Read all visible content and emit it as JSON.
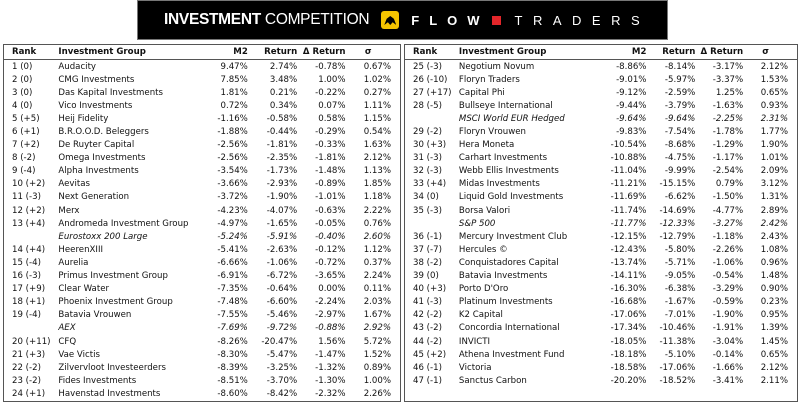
{
  "header": {
    "title_bold": "INVESTMENT",
    "title_rest": "COMPETITION",
    "brand_left": "FLOW",
    "brand_right": "TRADERS",
    "brand_colors": {
      "logo": "#f5c400",
      "square": "#e3262a",
      "background": "#000000"
    }
  },
  "columns": [
    "Rank",
    "Investment Group",
    "M2",
    "Return",
    "Δ Return",
    "σ"
  ],
  "left_table": [
    {
      "rank": "1 (0)",
      "group": "Audacity",
      "m2": "9.47%",
      "ret": "2.74%",
      "dret": "-0.78%",
      "sigma": "0.67%"
    },
    {
      "rank": "2 (0)",
      "group": "CMG Investments",
      "m2": "7.85%",
      "ret": "3.48%",
      "dret": "1.00%",
      "sigma": "1.02%"
    },
    {
      "rank": "3 (0)",
      "group": "Das Kapital Investments",
      "m2": "1.81%",
      "ret": "0.21%",
      "dret": "-0.22%",
      "sigma": "0.27%"
    },
    {
      "rank": "4 (0)",
      "group": "Vico Investments",
      "m2": "0.72%",
      "ret": "0.34%",
      "dret": "0.07%",
      "sigma": "1.11%"
    },
    {
      "rank": "5 (+5)",
      "group": "Heij Fidelity",
      "m2": "-1.16%",
      "ret": "-0.58%",
      "dret": "0.58%",
      "sigma": "1.15%"
    },
    {
      "rank": "6 (+1)",
      "group": "B.R.O.O.D. Beleggers",
      "m2": "-1.88%",
      "ret": "-0.44%",
      "dret": "-0.29%",
      "sigma": "0.54%"
    },
    {
      "rank": "7 (+2)",
      "group": "De Ruyter Capital",
      "m2": "-2.56%",
      "ret": "-1.81%",
      "dret": "-0.33%",
      "sigma": "1.63%"
    },
    {
      "rank": "8 (-2)",
      "group": "Omega Investments",
      "m2": "-2.56%",
      "ret": "-2.35%",
      "dret": "-1.81%",
      "sigma": "2.12%"
    },
    {
      "rank": "9 (-4)",
      "group": "Alpha Investments",
      "m2": "-3.54%",
      "ret": "-1.73%",
      "dret": "-1.48%",
      "sigma": "1.13%"
    },
    {
      "rank": "10 (+2)",
      "group": "Aevitas",
      "m2": "-3.66%",
      "ret": "-2.93%",
      "dret": "-0.89%",
      "sigma": "1.85%"
    },
    {
      "rank": "11 (-3)",
      "group": "Next Generation",
      "m2": "-3.72%",
      "ret": "-1.90%",
      "dret": "-1.01%",
      "sigma": "1.18%"
    },
    {
      "rank": "12 (+2)",
      "group": "Merx",
      "m2": "-4.23%",
      "ret": "-4.07%",
      "dret": "-0.63%",
      "sigma": "2.22%"
    },
    {
      "rank": "13 (+4)",
      "group": "Andromeda Investment Group",
      "m2": "-4.97%",
      "ret": "-1.65%",
      "dret": "-0.05%",
      "sigma": "0.76%"
    },
    {
      "rank": "",
      "group": "Eurostoxx 200 Large",
      "m2": "-5.24%",
      "ret": "-5.91%",
      "dret": "-0.40%",
      "sigma": "2.60%",
      "benchmark": true
    },
    {
      "rank": "14 (+4)",
      "group": "HeerenXIII",
      "m2": "-5.41%",
      "ret": "-2.63%",
      "dret": "-0.12%",
      "sigma": "1.12%"
    },
    {
      "rank": "15 (-4)",
      "group": "Aurelia",
      "m2": "-6.66%",
      "ret": "-1.06%",
      "dret": "-0.72%",
      "sigma": "0.37%"
    },
    {
      "rank": "16 (-3)",
      "group": "Primus Investment Group",
      "m2": "-6.91%",
      "ret": "-6.72%",
      "dret": "-3.65%",
      "sigma": "2.24%"
    },
    {
      "rank": "17 (+9)",
      "group": "Clear Water",
      "m2": "-7.35%",
      "ret": "-0.64%",
      "dret": "0.00%",
      "sigma": "0.11%"
    },
    {
      "rank": "18 (+1)",
      "group": "Phoenix Investment Group",
      "m2": "-7.48%",
      "ret": "-6.60%",
      "dret": "-2.24%",
      "sigma": "2.03%"
    },
    {
      "rank": "19 (-4)",
      "group": "Batavia Vrouwen",
      "m2": "-7.55%",
      "ret": "-5.46%",
      "dret": "-2.97%",
      "sigma": "1.67%"
    },
    {
      "rank": "",
      "group": "AEX",
      "m2": "-7.69%",
      "ret": "-9.72%",
      "dret": "-0.88%",
      "sigma": "2.92%",
      "benchmark": true
    },
    {
      "rank": "20 (+11)",
      "group": "CFQ",
      "m2": "-8.26%",
      "ret": "-20.47%",
      "dret": "1.56%",
      "sigma": "5.72%"
    },
    {
      "rank": "21 (+3)",
      "group": "Vae Victis",
      "m2": "-8.30%",
      "ret": "-5.47%",
      "dret": "-1.47%",
      "sigma": "1.52%"
    },
    {
      "rank": "22 (-2)",
      "group": "Zilvervloot Investeerders",
      "m2": "-8.39%",
      "ret": "-3.25%",
      "dret": "-1.32%",
      "sigma": "0.89%"
    },
    {
      "rank": "23 (-2)",
      "group": "Fides Investments",
      "m2": "-8.51%",
      "ret": "-3.70%",
      "dret": "-1.30%",
      "sigma": "1.00%"
    },
    {
      "rank": "24 (+1)",
      "group": "Havenstad Investments",
      "m2": "-8.60%",
      "ret": "-8.42%",
      "dret": "-2.32%",
      "sigma": "2.26%"
    }
  ],
  "right_table": [
    {
      "rank": "25 (-3)",
      "group": "Negotium Novum",
      "m2": "-8.86%",
      "ret": "-8.14%",
      "dret": "-3.17%",
      "sigma": "2.12%"
    },
    {
      "rank": "26 (-10)",
      "group": "Floryn Traders",
      "m2": "-9.01%",
      "ret": "-5.97%",
      "dret": "-3.37%",
      "sigma": "1.53%"
    },
    {
      "rank": "27 (+17)",
      "group": "Capital Phi",
      "m2": "-9.12%",
      "ret": "-2.59%",
      "dret": "1.25%",
      "sigma": "0.65%"
    },
    {
      "rank": "28 (-5)",
      "group": "Bullseye International",
      "m2": "-9.44%",
      "ret": "-3.79%",
      "dret": "-1.63%",
      "sigma": "0.93%"
    },
    {
      "rank": "",
      "group": "MSCI World EUR Hedged",
      "m2": "-9.64%",
      "ret": "-9.64%",
      "dret": "-2.25%",
      "sigma": "2.31%",
      "benchmark": true
    },
    {
      "rank": "29 (-2)",
      "group": "Floryn Vrouwen",
      "m2": "-9.83%",
      "ret": "-7.54%",
      "dret": "-1.78%",
      "sigma": "1.77%"
    },
    {
      "rank": "30 (+3)",
      "group": "Hera Moneta",
      "m2": "-10.54%",
      "ret": "-8.68%",
      "dret": "-1.29%",
      "sigma": "1.90%"
    },
    {
      "rank": "31 (-3)",
      "group": "Carhart Investments",
      "m2": "-10.88%",
      "ret": "-4.75%",
      "dret": "-1.17%",
      "sigma": "1.01%"
    },
    {
      "rank": "32 (-3)",
      "group": "Webb Ellis Investments",
      "m2": "-11.04%",
      "ret": "-9.99%",
      "dret": "-2.54%",
      "sigma": "2.09%"
    },
    {
      "rank": "33 (+4)",
      "group": "Midas Investments",
      "m2": "-11.21%",
      "ret": "-15.15%",
      "dret": "0.79%",
      "sigma": "3.12%"
    },
    {
      "rank": "34 (0)",
      "group": "Liquid Gold Investments",
      "m2": "-11.69%",
      "ret": "-6.62%",
      "dret": "-1.50%",
      "sigma": "1.31%"
    },
    {
      "rank": "35 (-3)",
      "group": "Borsa Valori",
      "m2": "-11.74%",
      "ret": "-14.69%",
      "dret": "-4.77%",
      "sigma": "2.89%"
    },
    {
      "rank": "",
      "group": "S&P 500",
      "m2": "-11.77%",
      "ret": "-12.33%",
      "dret": "-3.27%",
      "sigma": "2.42%",
      "benchmark": true
    },
    {
      "rank": "36 (-1)",
      "group": "Mercury Investment Club",
      "m2": "-12.15%",
      "ret": "-12.79%",
      "dret": "-1.18%",
      "sigma": "2.43%"
    },
    {
      "rank": "37 (-7)",
      "group": "Hercules ©",
      "m2": "-12.43%",
      "ret": "-5.80%",
      "dret": "-2.26%",
      "sigma": "1.08%"
    },
    {
      "rank": "38 (-2)",
      "group": "Conquistadores Capital",
      "m2": "-13.74%",
      "ret": "-5.71%",
      "dret": "-1.06%",
      "sigma": "0.96%"
    },
    {
      "rank": "39 (0)",
      "group": "Batavia Investments",
      "m2": "-14.11%",
      "ret": "-9.05%",
      "dret": "-0.54%",
      "sigma": "1.48%"
    },
    {
      "rank": "40 (+3)",
      "group": "Porto D'Oro",
      "m2": "-16.30%",
      "ret": "-6.38%",
      "dret": "-3.29%",
      "sigma": "0.90%"
    },
    {
      "rank": "41 (-3)",
      "group": "Platinum Investments",
      "m2": "-16.68%",
      "ret": "-1.67%",
      "dret": "-0.59%",
      "sigma": "0.23%"
    },
    {
      "rank": "42 (-2)",
      "group": "K2 Capital",
      "m2": "-17.06%",
      "ret": "-7.01%",
      "dret": "-1.90%",
      "sigma": "0.95%"
    },
    {
      "rank": "43 (-2)",
      "group": "Concordia International",
      "m2": "-17.34%",
      "ret": "-10.46%",
      "dret": "-1.91%",
      "sigma": "1.39%"
    },
    {
      "rank": "44 (-2)",
      "group": "INVICTI",
      "m2": "-18.05%",
      "ret": "-11.38%",
      "dret": "-3.04%",
      "sigma": "1.45%"
    },
    {
      "rank": "45 (+2)",
      "group": "Athena Investment Fund",
      "m2": "-18.18%",
      "ret": "-5.10%",
      "dret": "-0.14%",
      "sigma": "0.65%"
    },
    {
      "rank": "46 (-1)",
      "group": "Victoria",
      "m2": "-18.58%",
      "ret": "-17.06%",
      "dret": "-1.66%",
      "sigma": "2.12%"
    },
    {
      "rank": "47 (-1)",
      "group": "Sanctus Carbon",
      "m2": "-20.20%",
      "ret": "-18.52%",
      "dret": "-3.41%",
      "sigma": "2.11%"
    }
  ]
}
